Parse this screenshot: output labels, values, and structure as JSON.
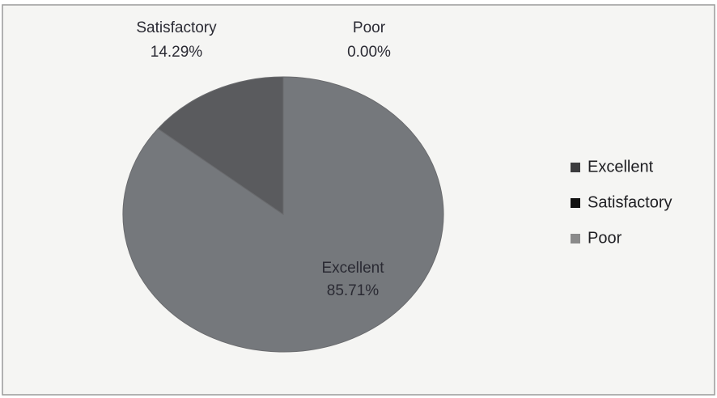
{
  "chart_data": {
    "type": "pie",
    "categories": [
      "Excellent",
      "Satisfactory",
      "Poor"
    ],
    "values": [
      85.71,
      14.29,
      0.0
    ],
    "value_labels": [
      "85.71%",
      "14.29%",
      "0.00%"
    ],
    "colors": [
      "#75787c",
      "#5a5b5e",
      "#8e8e8e"
    ],
    "legend_colors": [
      "#3c3c3e",
      "#111111",
      "#8a8a8a"
    ],
    "legend": "right"
  }
}
